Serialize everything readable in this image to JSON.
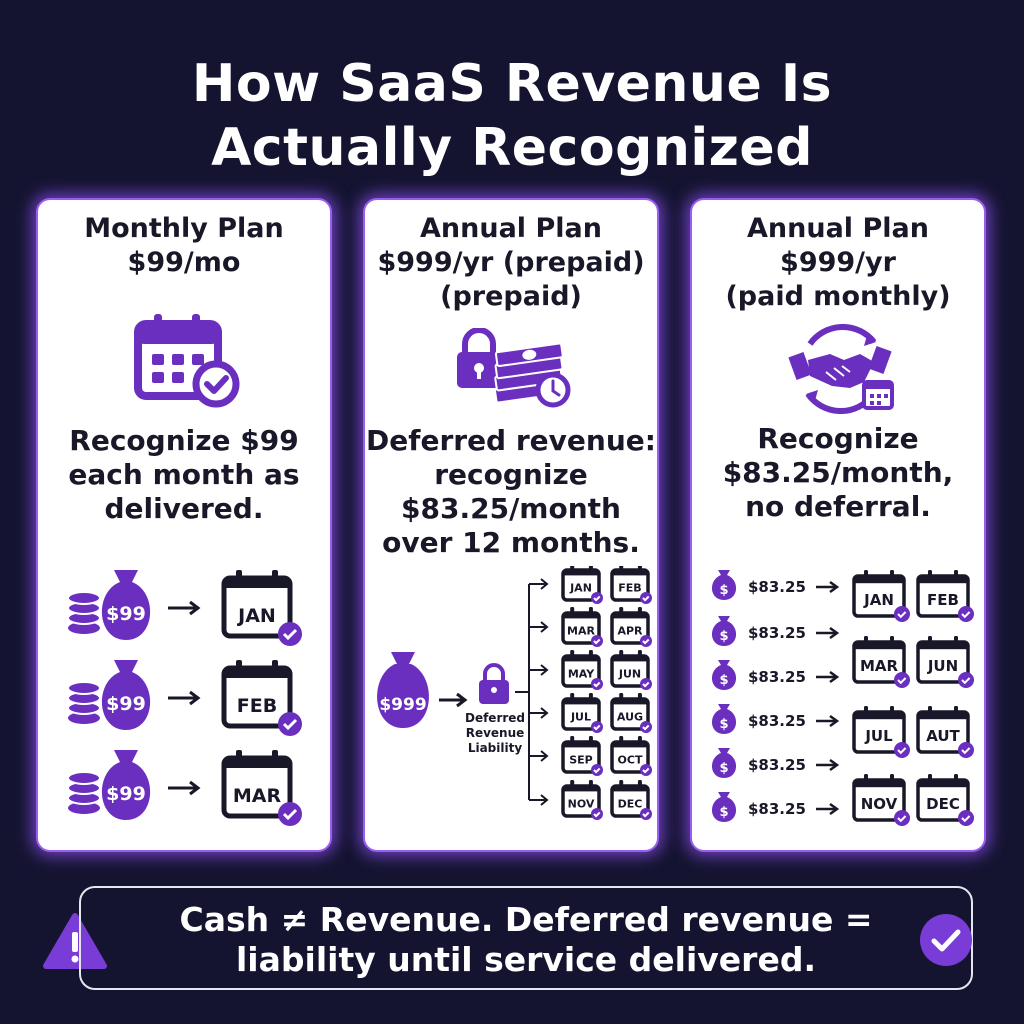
{
  "title": {
    "line1": "How SaaS Revenue Is",
    "line2": "Actually Recognized"
  },
  "colors": {
    "background": "#141430",
    "accent": "#6a2fbf",
    "card_border": "#9b5cf0",
    "text_dark": "#181828"
  },
  "cards": [
    {
      "heading": [
        "Monthly Plan",
        "$99/mo"
      ],
      "icon": "calendar-check-icon",
      "description": [
        "Recognize $99",
        "each month as",
        "delivered."
      ],
      "rows": [
        {
          "amount": "$99",
          "month": "JAN"
        },
        {
          "amount": "$99",
          "month": "FEB"
        },
        {
          "amount": "$99",
          "month": "MAR"
        }
      ]
    },
    {
      "heading": [
        "Annual Plan",
        "$999/yr (prepaid)",
        "(prepaid)"
      ],
      "icon": "lock-cash-clock-icon",
      "description": [
        "Deferred revenue:",
        "recognize",
        "$83.25/month",
        "over 12 months."
      ],
      "bag_amount": "$999",
      "liability_label": [
        "Deferred",
        "Revenue",
        "Liability"
      ],
      "months": [
        "JAN",
        "FEB",
        "MAR",
        "APR",
        "MAY",
        "JUN",
        "JUL",
        "AUG",
        "SEP",
        "OCT",
        "NOV",
        "DEC"
      ]
    },
    {
      "heading": [
        "Annual Plan",
        "$999/yr",
        "(paid monthly)"
      ],
      "icon": "handshake-cycle-icon",
      "description": [
        "Recognize",
        "$83.25/month,",
        "no deferral."
      ],
      "amount": "$83.25",
      "months": [
        "JAN",
        "FEB",
        "MAR",
        "JUN",
        "JUL",
        "AUT",
        "NOV",
        "DEC"
      ]
    }
  ],
  "footer": {
    "line1": "Cash ≠ Revenue. Deferred revenue =",
    "line2": "liability until service delivered.",
    "left_icon": "warning-icon",
    "right_icon": "check-circle-icon"
  }
}
